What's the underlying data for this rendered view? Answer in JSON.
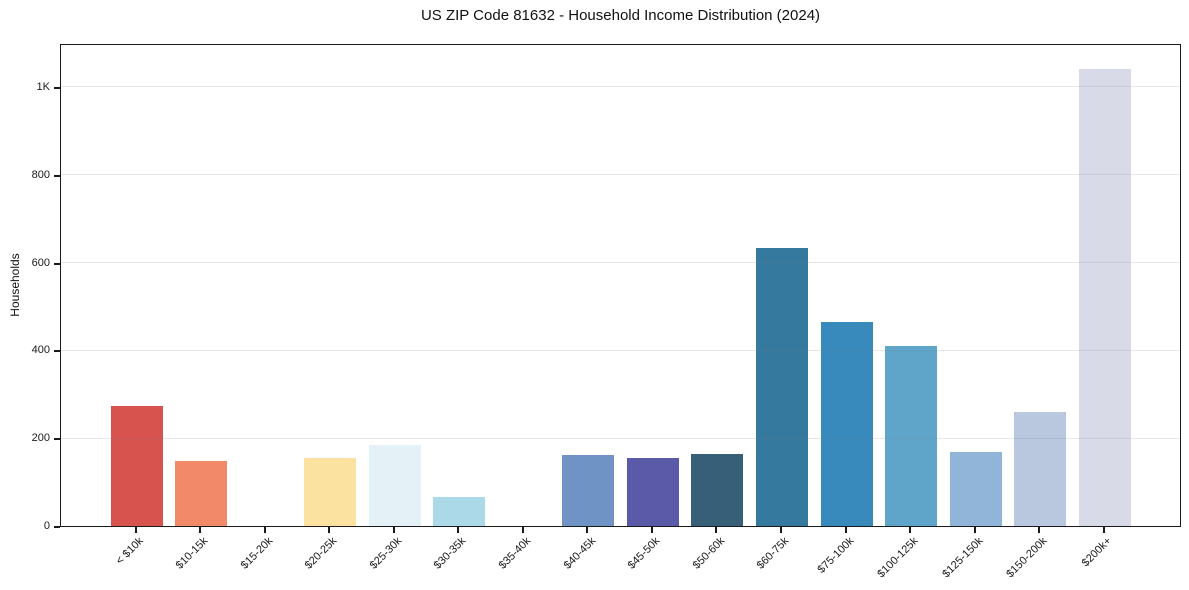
{
  "chart_data": {
    "type": "bar",
    "title": "US ZIP Code 81632 - Household Income Distribution (2024)",
    "xlabel": "",
    "ylabel": "Households",
    "categories": [
      "< $10k",
      "$10-15k",
      "$15-20k",
      "$20-25k",
      "$25-30k",
      "$30-35k",
      "$35-40k",
      "$40-45k",
      "$45-50k",
      "$50-60k",
      "$60-75k",
      "$75-100k",
      "$100-125k",
      "$125-150k",
      "$150-200k",
      "$200k+"
    ],
    "values": [
      273,
      149,
      0,
      156,
      184,
      66,
      0,
      161,
      154,
      165,
      634,
      465,
      409,
      168,
      259,
      1040
    ],
    "colors": [
      "#d6534e",
      "#f28a6a",
      "#f9bd87",
      "#fbe2a1",
      "#e4f1f6",
      "#abd9e8",
      "#8cc6dc",
      "#6e93c4",
      "#5a5aa8",
      "#375f78",
      "#35799e",
      "#3889bc",
      "#5ea5c9",
      "#91b5d8",
      "#b9c7df",
      "#d8dae7"
    ],
    "ylim": [
      0,
      1100
    ],
    "yticks": [
      {
        "value": 0,
        "label": "0"
      },
      {
        "value": 200,
        "label": "200"
      },
      {
        "value": 400,
        "label": "400"
      },
      {
        "value": 600,
        "label": "600"
      },
      {
        "value": 800,
        "label": "800"
      },
      {
        "value": 1000,
        "label": "1K"
      }
    ],
    "grid": "horizontal",
    "legend": "none",
    "x_tick_rotation": 45,
    "bar_color_alpha": 1
  }
}
